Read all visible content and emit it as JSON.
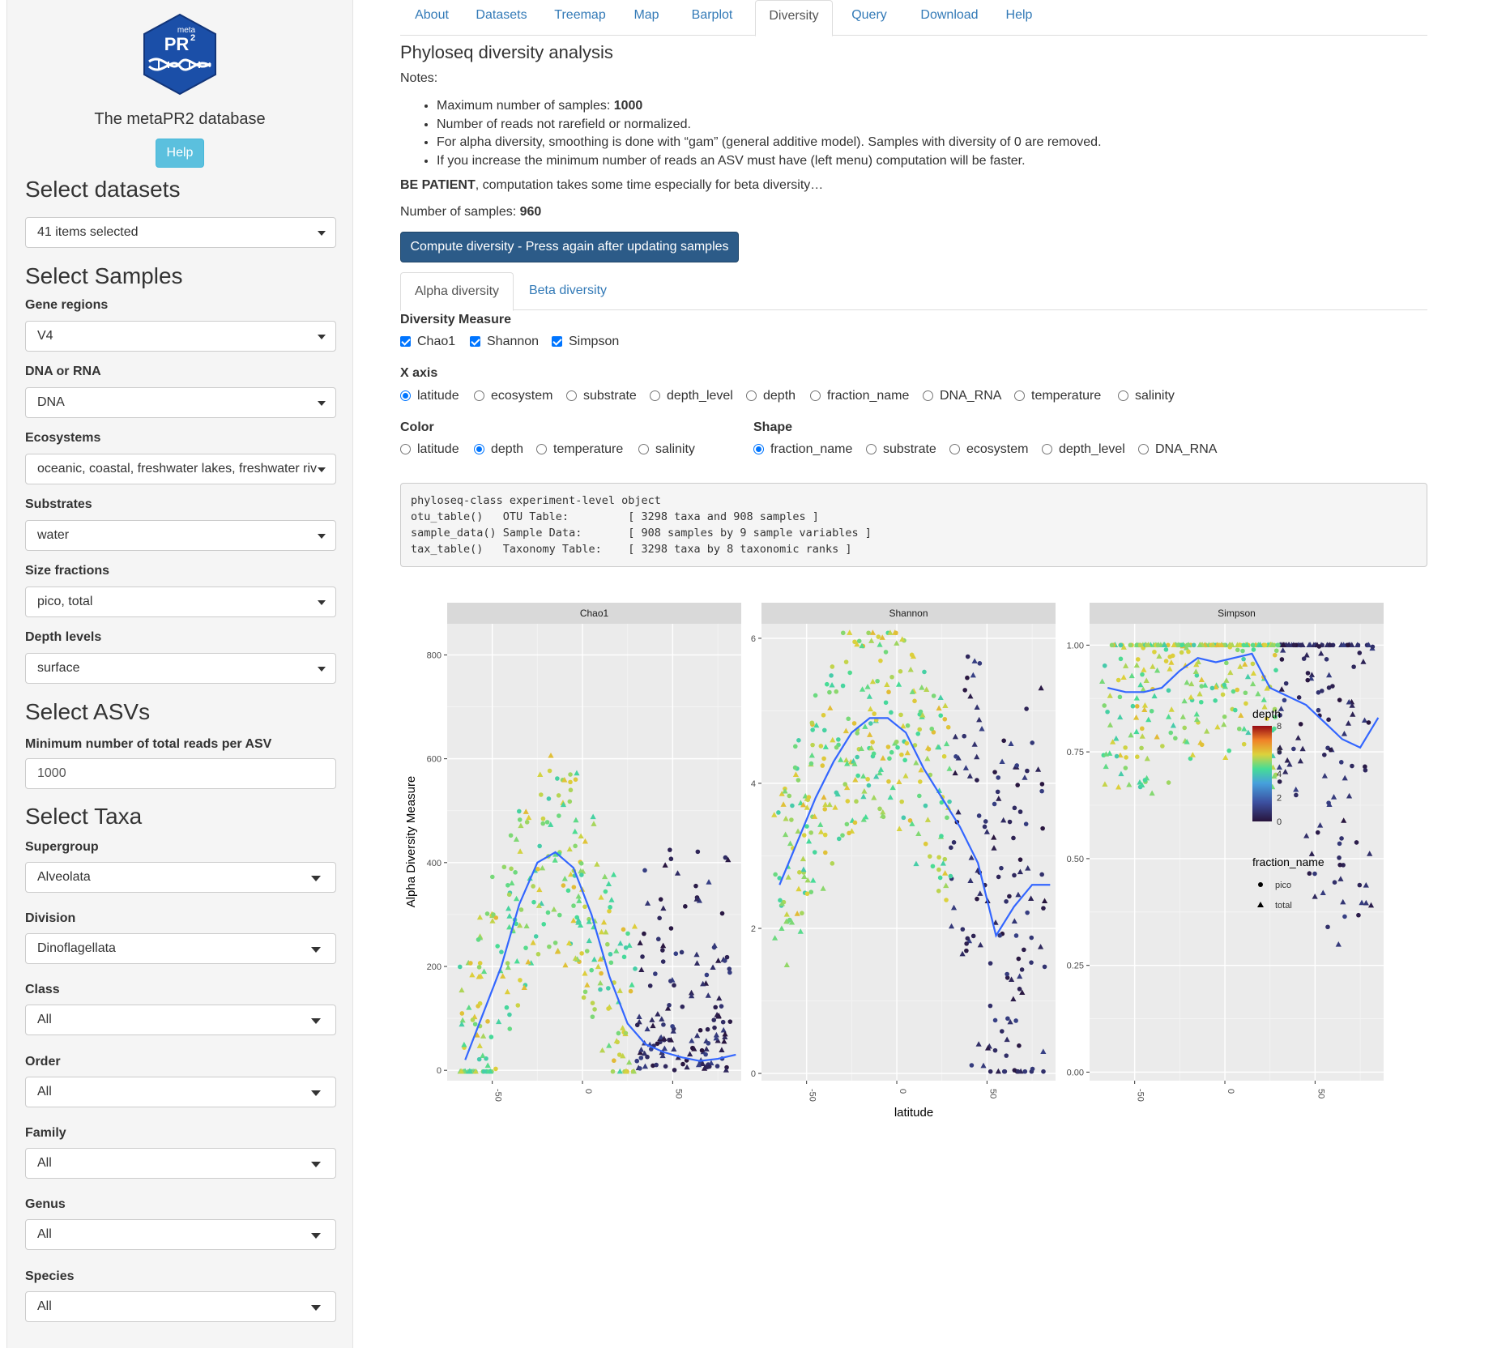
{
  "sidebar": {
    "logo": {
      "line1": "meta",
      "line2": "PR",
      "sup": "2"
    },
    "title": "The metaPR2 database",
    "help_label": "Help",
    "sections": {
      "datasets": "Select datasets",
      "samples": "Select Samples",
      "asvs": "Select ASVs",
      "taxa": "Select Taxa"
    },
    "datasets_value": "41 items selected",
    "fields": [
      {
        "label": "Gene regions",
        "value": "V4"
      },
      {
        "label": "DNA or RNA",
        "value": "DNA"
      },
      {
        "label": "Ecosystems",
        "value": "oceanic, coastal, freshwater lakes, freshwater riv"
      },
      {
        "label": "Substrates",
        "value": "water"
      },
      {
        "label": "Size fractions",
        "value": "pico, total"
      },
      {
        "label": "Depth levels",
        "value": "surface"
      }
    ],
    "min_reads": {
      "label": "Minimum number of total reads per ASV",
      "value": "1000"
    },
    "taxa": [
      {
        "label": "Supergroup",
        "value": "Alveolata"
      },
      {
        "label": "Division",
        "value": "Dinoflagellata"
      },
      {
        "label": "Class",
        "value": "All"
      },
      {
        "label": "Order",
        "value": "All"
      },
      {
        "label": "Family",
        "value": "All"
      },
      {
        "label": "Genus",
        "value": "All"
      },
      {
        "label": "Species",
        "value": "All"
      }
    ]
  },
  "tabs": [
    "About",
    "Datasets",
    "Treemap",
    "Map",
    "Barplot",
    "Diversity",
    "Query",
    "Download",
    "Help"
  ],
  "active_tab": "Diversity",
  "page": {
    "title": "Phyloseq diversity analysis",
    "notes_label": "Notes:",
    "notes": {
      "n1_prefix": "Maximum number of samples: ",
      "n1_bold": "1000",
      "n2": "Number of reads not rarefield or normalized.",
      "n3": "For alpha diversity, smoothing is done with “gam” (general additive model). Samples with diversity of 0 are removed.",
      "n4": "If you increase the minimum number of reads an ASV must have (left menu) computation will be faster."
    },
    "patient_bold": "BE PATIENT",
    "patient_rest": ", computation takes some time especially for beta diversity…",
    "samples_prefix": "Number of samples: ",
    "samples_value": "960",
    "compute_label": "Compute diversity - Press again after updating samples",
    "subtabs": [
      "Alpha diversity",
      "Beta diversity"
    ],
    "diversity_measure": {
      "label": "Diversity Measure",
      "options": [
        "Chao1",
        "Shannon",
        "Simpson"
      ]
    },
    "xaxis": {
      "label": "X axis",
      "options": [
        "latitude",
        "ecosystem",
        "substrate",
        "depth_level",
        "depth",
        "fraction_name",
        "DNA_RNA",
        "temperature",
        "salinity"
      ],
      "selected": "latitude"
    },
    "color": {
      "label": "Color",
      "options": [
        "latitude",
        "depth",
        "temperature",
        "salinity"
      ],
      "selected": "depth"
    },
    "shape": {
      "label": "Shape",
      "options": [
        "fraction_name",
        "substrate",
        "ecosystem",
        "depth_level",
        "DNA_RNA"
      ],
      "selected": "fraction_name"
    },
    "console": [
      "phyloseq-class experiment-level object",
      "otu_table()   OTU Table:         [ 3298 taxa and 908 samples ]",
      "sample_data() Sample Data:       [ 908 samples by 9 sample variables ]",
      "tax_table()   Taxonomy Table:    [ 3298 taxa by 8 taxonomic ranks ]"
    ]
  },
  "colors": {
    "accent": "#337ab7",
    "primary_btn": "#2c5b88",
    "help_btn": "#5bc0de",
    "smooth_line": "#3366ff",
    "panel_bg": "#ebebeb",
    "strip_bg": "#d9d9d9"
  },
  "chart_data": {
    "type": "scatter",
    "ylabel": "Alpha Diversity Measure",
    "xlabel": "latitude",
    "x_ticks": [
      -50,
      0,
      50
    ],
    "facets": [
      {
        "name": "Chao1",
        "xlim": [
          -75,
          88
        ],
        "ylim": [
          -20,
          860
        ],
        "y_ticks": [
          0,
          200,
          400,
          600,
          800
        ],
        "y_tick_labels": [
          "0",
          "200",
          "400",
          "600",
          "800"
        ],
        "smooth": {
          "x": [
            -65,
            -55,
            -45,
            -35,
            -25,
            -15,
            -5,
            5,
            15,
            25,
            35,
            45,
            55,
            65,
            75,
            85
          ],
          "y": [
            20,
            110,
            200,
            320,
            400,
            420,
            390,
            300,
            180,
            90,
            50,
            35,
            25,
            18,
            22,
            30
          ]
        }
      },
      {
        "name": "Shannon",
        "xlim": [
          -75,
          88
        ],
        "ylim": [
          -0.1,
          6.2
        ],
        "y_ticks": [
          0,
          2,
          4,
          6
        ],
        "y_tick_labels": [
          "0",
          "2",
          "4",
          "6"
        ],
        "smooth": {
          "x": [
            -65,
            -55,
            -45,
            -35,
            -25,
            -15,
            -5,
            5,
            15,
            25,
            35,
            45,
            55,
            65,
            75,
            85
          ],
          "y": [
            2.6,
            3.2,
            3.8,
            4.3,
            4.7,
            4.9,
            4.9,
            4.7,
            4.2,
            3.8,
            3.4,
            2.9,
            1.9,
            2.3,
            2.6,
            2.6
          ]
        }
      },
      {
        "name": "Simpson",
        "xlim": [
          -75,
          88
        ],
        "ylim": [
          -0.02,
          1.05
        ],
        "y_ticks": [
          0,
          0.25,
          0.5,
          0.75,
          1
        ],
        "y_tick_labels": [
          "0.00",
          "0.25",
          "0.50",
          "0.75",
          "1.00"
        ],
        "smooth": {
          "x": [
            -65,
            -55,
            -45,
            -35,
            -25,
            -15,
            -5,
            5,
            15,
            25,
            35,
            45,
            55,
            65,
            75,
            85
          ],
          "y": [
            0.9,
            0.89,
            0.89,
            0.9,
            0.94,
            0.97,
            0.96,
            0.97,
            0.98,
            0.9,
            0.88,
            0.86,
            0.82,
            0.78,
            0.76,
            0.83
          ]
        }
      }
    ],
    "legend_color": {
      "title": "depth",
      "ticks": [
        0,
        2,
        4,
        6,
        8
      ]
    },
    "legend_shape": {
      "title": "fraction_name",
      "items": [
        "pico",
        "total"
      ]
    }
  }
}
